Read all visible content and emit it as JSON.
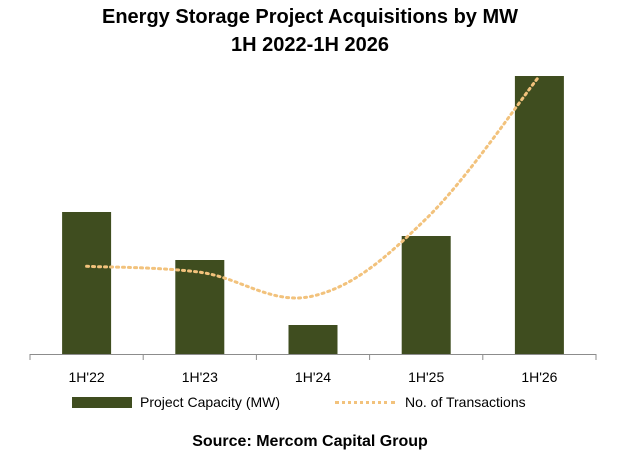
{
  "colors": {
    "bar": "#3f4d1f",
    "line": "#f2c27c",
    "axis": "#8c8c8c"
  },
  "chart_data": {
    "type": "bar",
    "title": "Energy Storage Project Acquisitions by MW",
    "subtitle": "1H 2022-1H 2026",
    "categories": [
      "1H'22",
      "1H'23",
      "1H'24",
      "1H'25",
      "1H'26"
    ],
    "series": [
      {
        "name": "Project Capacity (MW)",
        "type": "bar",
        "values": [
          142,
          94,
          29,
          118,
          278
        ]
      },
      {
        "name": "No. of Transactions",
        "type": "line",
        "values": [
          15,
          14,
          10,
          23,
          47
        ]
      }
    ],
    "y_axis_visible": false,
    "grid": false,
    "legend_position": "bottom"
  },
  "source": "Source: Mercom Capital Group"
}
